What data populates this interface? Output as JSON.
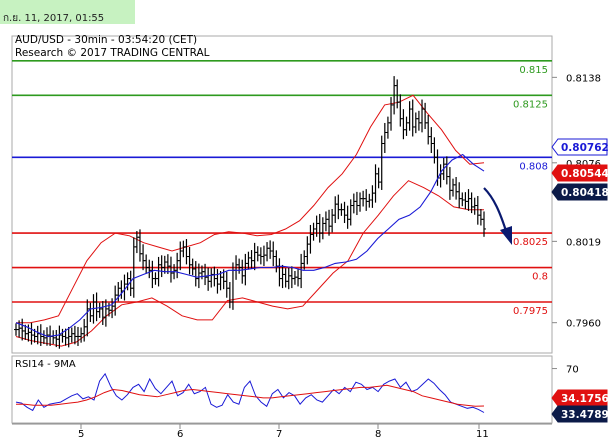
{
  "header": {
    "datetime": "ก.ย. 11, 2017, 01:55",
    "title": "AUD/USD - 30min - 03:54:20 (CET)",
    "research": "Research © 2017 TRADING CENTRAL"
  },
  "colors": {
    "green_level": "#2e9a1f",
    "blue_level": "#1a1ad6",
    "red_level": "#e01010",
    "bollinger": "#e01010",
    "moving_average": "#1a1ad6",
    "candles": "#000000",
    "arrow": "#0a1a70",
    "rsi_line": "#1a1ad6",
    "rsi_ma": "#e01010"
  },
  "chart_data": [
    {
      "type": "line",
      "name": "price",
      "ylim": [
        0.7938,
        0.8168
      ],
      "y_ticks": [
        "0.8138",
        "0.8076",
        "0.8019",
        "0.7960"
      ],
      "y_tick_values": [
        0.8138,
        0.8076,
        0.8019,
        0.796
      ],
      "x_ticks": [
        "5",
        "6",
        "7",
        "8",
        "11"
      ],
      "levels": [
        {
          "label": "0.815",
          "value": 0.815,
          "color": "green"
        },
        {
          "label": "0.8125",
          "value": 0.8125,
          "color": "green"
        },
        {
          "label": "0.808",
          "value": 0.808,
          "color": "blue"
        },
        {
          "label": "0.8025",
          "value": 0.8025,
          "color": "red"
        },
        {
          "label": "0.8",
          "value": 0.8,
          "color": "red"
        },
        {
          "label": "0.7975",
          "value": 0.7975,
          "color": "red"
        }
      ],
      "price_badges": [
        {
          "label": "0.80762",
          "value": 0.80762,
          "style": "blue"
        },
        {
          "label": "0.80544",
          "value": 0.80544,
          "style": "red"
        },
        {
          "label": "0.80418",
          "value": 0.80418,
          "style": "dark"
        }
      ],
      "series": [
        {
          "name": "close",
          "values": [
            0.7955,
            0.7956,
            0.7954,
            0.7952,
            0.7953,
            0.7951,
            0.795,
            0.7952,
            0.795,
            0.7949,
            0.7951,
            0.795,
            0.7949,
            0.7948,
            0.7951,
            0.795,
            0.7949,
            0.795,
            0.7952,
            0.795,
            0.795,
            0.7952,
            0.7957,
            0.797,
            0.7965,
            0.7975,
            0.7968,
            0.797,
            0.7964,
            0.797,
            0.7969,
            0.7972,
            0.798,
            0.7985,
            0.7983,
            0.7988,
            0.7992,
            0.7985,
            0.8015,
            0.8022,
            0.801,
            0.8005,
            0.8,
            0.7998,
            0.7992,
            0.7992,
            0.8002,
            0.8,
            0.8004,
            0.8001,
            0.7996,
            0.7998,
            0.8005,
            0.8012,
            0.8015,
            0.8008,
            0.8002,
            0.7999,
            0.7992,
            0.7996,
            0.7997,
            0.7993,
            0.799,
            0.7995,
            0.7992,
            0.7988,
            0.7993,
            0.799,
            0.7985,
            0.7975,
            0.7998,
            0.8002,
            0.8,
            0.7994,
            0.8003,
            0.8007,
            0.8005,
            0.8011,
            0.8009,
            0.8008,
            0.8009,
            0.8014,
            0.8012,
            0.8008,
            0.8001,
            0.7992,
            0.7995,
            0.799,
            0.7994,
            0.7992,
            0.7993,
            0.7992,
            0.8003,
            0.8008,
            0.8017,
            0.8024,
            0.8028,
            0.8032,
            0.8025,
            0.8032,
            0.8035,
            0.803,
            0.8038,
            0.8046,
            0.8042,
            0.8042,
            0.8038,
            0.8035,
            0.8045,
            0.8048,
            0.8045,
            0.805,
            0.805,
            0.8048,
            0.8049,
            0.8054,
            0.8068,
            0.8062,
            0.809,
            0.8098,
            0.8105,
            0.8118,
            0.8132,
            0.812,
            0.8108,
            0.81,
            0.8105,
            0.8115,
            0.8102,
            0.8108,
            0.8105,
            0.8115,
            0.8105,
            0.8095,
            0.809,
            0.808,
            0.8065,
            0.8068,
            0.8075,
            0.8066,
            0.8056,
            0.806,
            0.8055,
            0.805,
            0.8049,
            0.8048,
            0.805,
            0.8044,
            0.8045,
            0.8038,
            0.8035,
            0.8028
          ]
        },
        {
          "name": "moving_average",
          "values": [
            0.796,
            0.7957,
            0.7953,
            0.795,
            0.7951,
            0.7956,
            0.7962,
            0.797,
            0.7971,
            0.7973,
            0.7982,
            0.7992,
            0.7995,
            0.7998,
            0.7997,
            0.7997,
            0.7995,
            0.7993,
            0.7994,
            0.7995,
            0.7998,
            0.7998,
            0.7999,
            0.8,
            0.8,
            0.8001,
            0.8,
            0.7998,
            0.7998,
            0.8,
            0.8003,
            0.8004,
            0.8006,
            0.8012,
            0.8021,
            0.8028,
            0.8035,
            0.8038,
            0.8044,
            0.8055,
            0.807,
            0.8078,
            0.8082,
            0.8075,
            0.807
          ]
        },
        {
          "name": "bollinger_upper",
          "values": [
            0.796,
            0.796,
            0.7962,
            0.7965,
            0.7985,
            0.8005,
            0.8018,
            0.8025,
            0.8023,
            0.8018,
            0.8015,
            0.8012,
            0.8015,
            0.8018,
            0.8024,
            0.8026,
            0.8025,
            0.8023,
            0.8024,
            0.8028,
            0.8034,
            0.8045,
            0.8058,
            0.8068,
            0.8082,
            0.8102,
            0.8118,
            0.812,
            0.8125,
            0.8112,
            0.81,
            0.8085,
            0.8075,
            0.8076
          ]
        },
        {
          "name": "bollinger_lower",
          "values": [
            0.795,
            0.7947,
            0.7945,
            0.7943,
            0.7946,
            0.7954,
            0.7965,
            0.7973,
            0.7975,
            0.7978,
            0.7972,
            0.7965,
            0.7962,
            0.7962,
            0.7976,
            0.7978,
            0.7975,
            0.7972,
            0.797,
            0.7972,
            0.7984,
            0.7996,
            0.8005,
            0.8025,
            0.8038,
            0.8052,
            0.8063,
            0.8058,
            0.8052,
            0.8044,
            0.8042,
            0.8042
          ]
        }
      ]
    },
    {
      "type": "line",
      "name": "rsi",
      "title": "RSI14 - 9MA",
      "ylim": [
        18,
        82
      ],
      "y_ticks": [
        "70"
      ],
      "y_tick_values": [
        70
      ],
      "badges": [
        {
          "label": "34.1756",
          "value": 34.1756,
          "style": "red"
        },
        {
          "label": "33.4789",
          "value": 33.4789,
          "style": "dark"
        }
      ],
      "series": [
        {
          "name": "RSI14",
          "values": [
            38,
            37,
            33,
            30,
            40,
            33,
            36,
            37,
            38,
            41,
            44,
            46,
            41,
            43,
            40,
            58,
            65,
            53,
            44,
            40,
            45,
            52,
            55,
            48,
            60,
            51,
            46,
            52,
            58,
            44,
            47,
            55,
            46,
            48,
            52,
            36,
            33,
            35,
            45,
            38,
            36,
            52,
            58,
            44,
            38,
            34,
            46,
            50,
            42,
            47,
            44,
            36,
            42,
            45,
            40,
            38,
            44,
            50,
            46,
            52,
            48,
            57,
            55,
            50,
            52,
            48,
            55,
            58,
            60,
            52,
            57,
            48,
            50,
            55,
            60,
            56,
            50,
            45,
            38,
            36,
            34,
            32,
            33,
            31,
            28
          ]
        },
        {
          "name": "9MA",
          "values": [
            36,
            36,
            35,
            35,
            35,
            36,
            37,
            38,
            40,
            43,
            47,
            50,
            49,
            47,
            45,
            44,
            43,
            45,
            47,
            49,
            50,
            49,
            48,
            47,
            46,
            45,
            44,
            43,
            42,
            42,
            43,
            44,
            45,
            46,
            47,
            48,
            49,
            50,
            51,
            52,
            52,
            53,
            54,
            52,
            50,
            48,
            44,
            42,
            40,
            38,
            36,
            35,
            34,
            34.2
          ]
        }
      ]
    }
  ]
}
